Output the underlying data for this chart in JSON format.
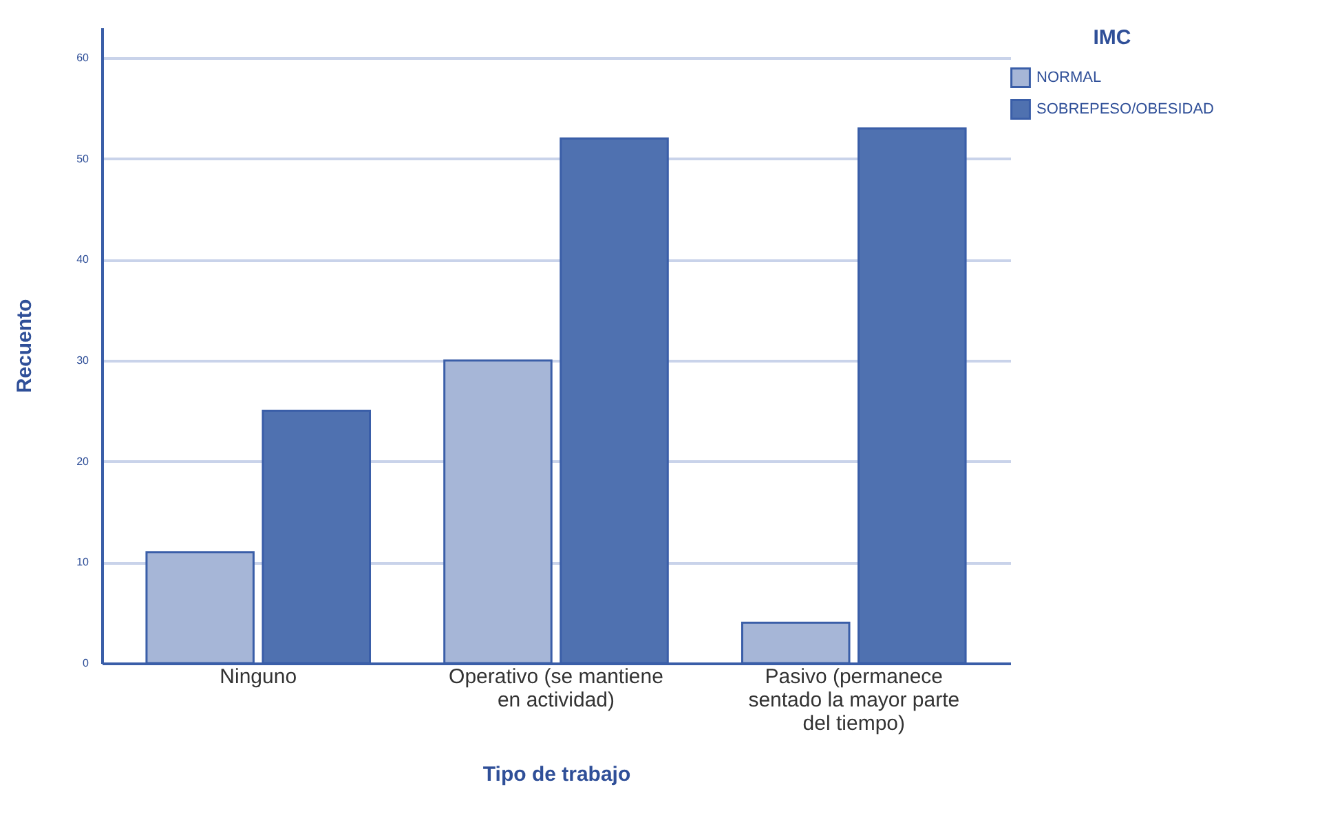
{
  "chart_data": {
    "type": "bar",
    "xlabel": "Tipo de trabajo",
    "ylabel": "Recuento",
    "legend_title": "IMC",
    "categories": [
      "Ninguno",
      "Operativo (se mantiene en actividad)",
      "Pasivo (permanece sentado la mayor parte del tiempo)"
    ],
    "series": [
      {
        "name": "NORMAL",
        "color": "#a6b6d7",
        "values": [
          11,
          30,
          4
        ]
      },
      {
        "name": "SOBREPESO/OBESIDAD",
        "color": "#4f71b0",
        "values": [
          25,
          52,
          53
        ]
      }
    ],
    "ylim": [
      0,
      63
    ],
    "yticks": [
      0,
      10,
      20,
      30,
      40,
      50,
      60
    ],
    "grid": "y",
    "legend": "top right"
  }
}
